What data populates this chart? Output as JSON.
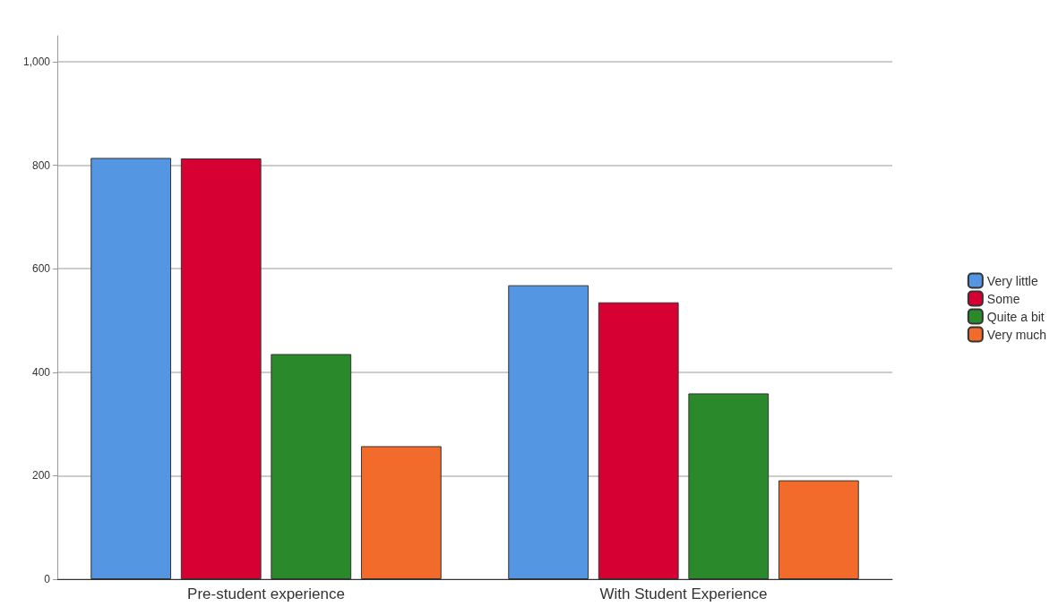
{
  "chart_data": {
    "type": "bar",
    "categories": [
      "Pre-student experience",
      "With Student Experience"
    ],
    "series": [
      {
        "name": "Very little",
        "color": "#5596e3",
        "values": [
          814,
          568
        ]
      },
      {
        "name": "Some",
        "color": "#d60032",
        "values": [
          813,
          535
        ]
      },
      {
        "name": "Quite a bit",
        "color": "#2a8a2b",
        "values": [
          435,
          359
        ]
      },
      {
        "name": "Very much",
        "color": "#f26b2a",
        "values": [
          257,
          191
        ]
      }
    ],
    "ylim": [
      0,
      1050
    ],
    "yticks": [
      0,
      200,
      400,
      600,
      800,
      {
        "value": 1000,
        "label": "1,000"
      }
    ],
    "grid": "y",
    "legend": "right"
  }
}
